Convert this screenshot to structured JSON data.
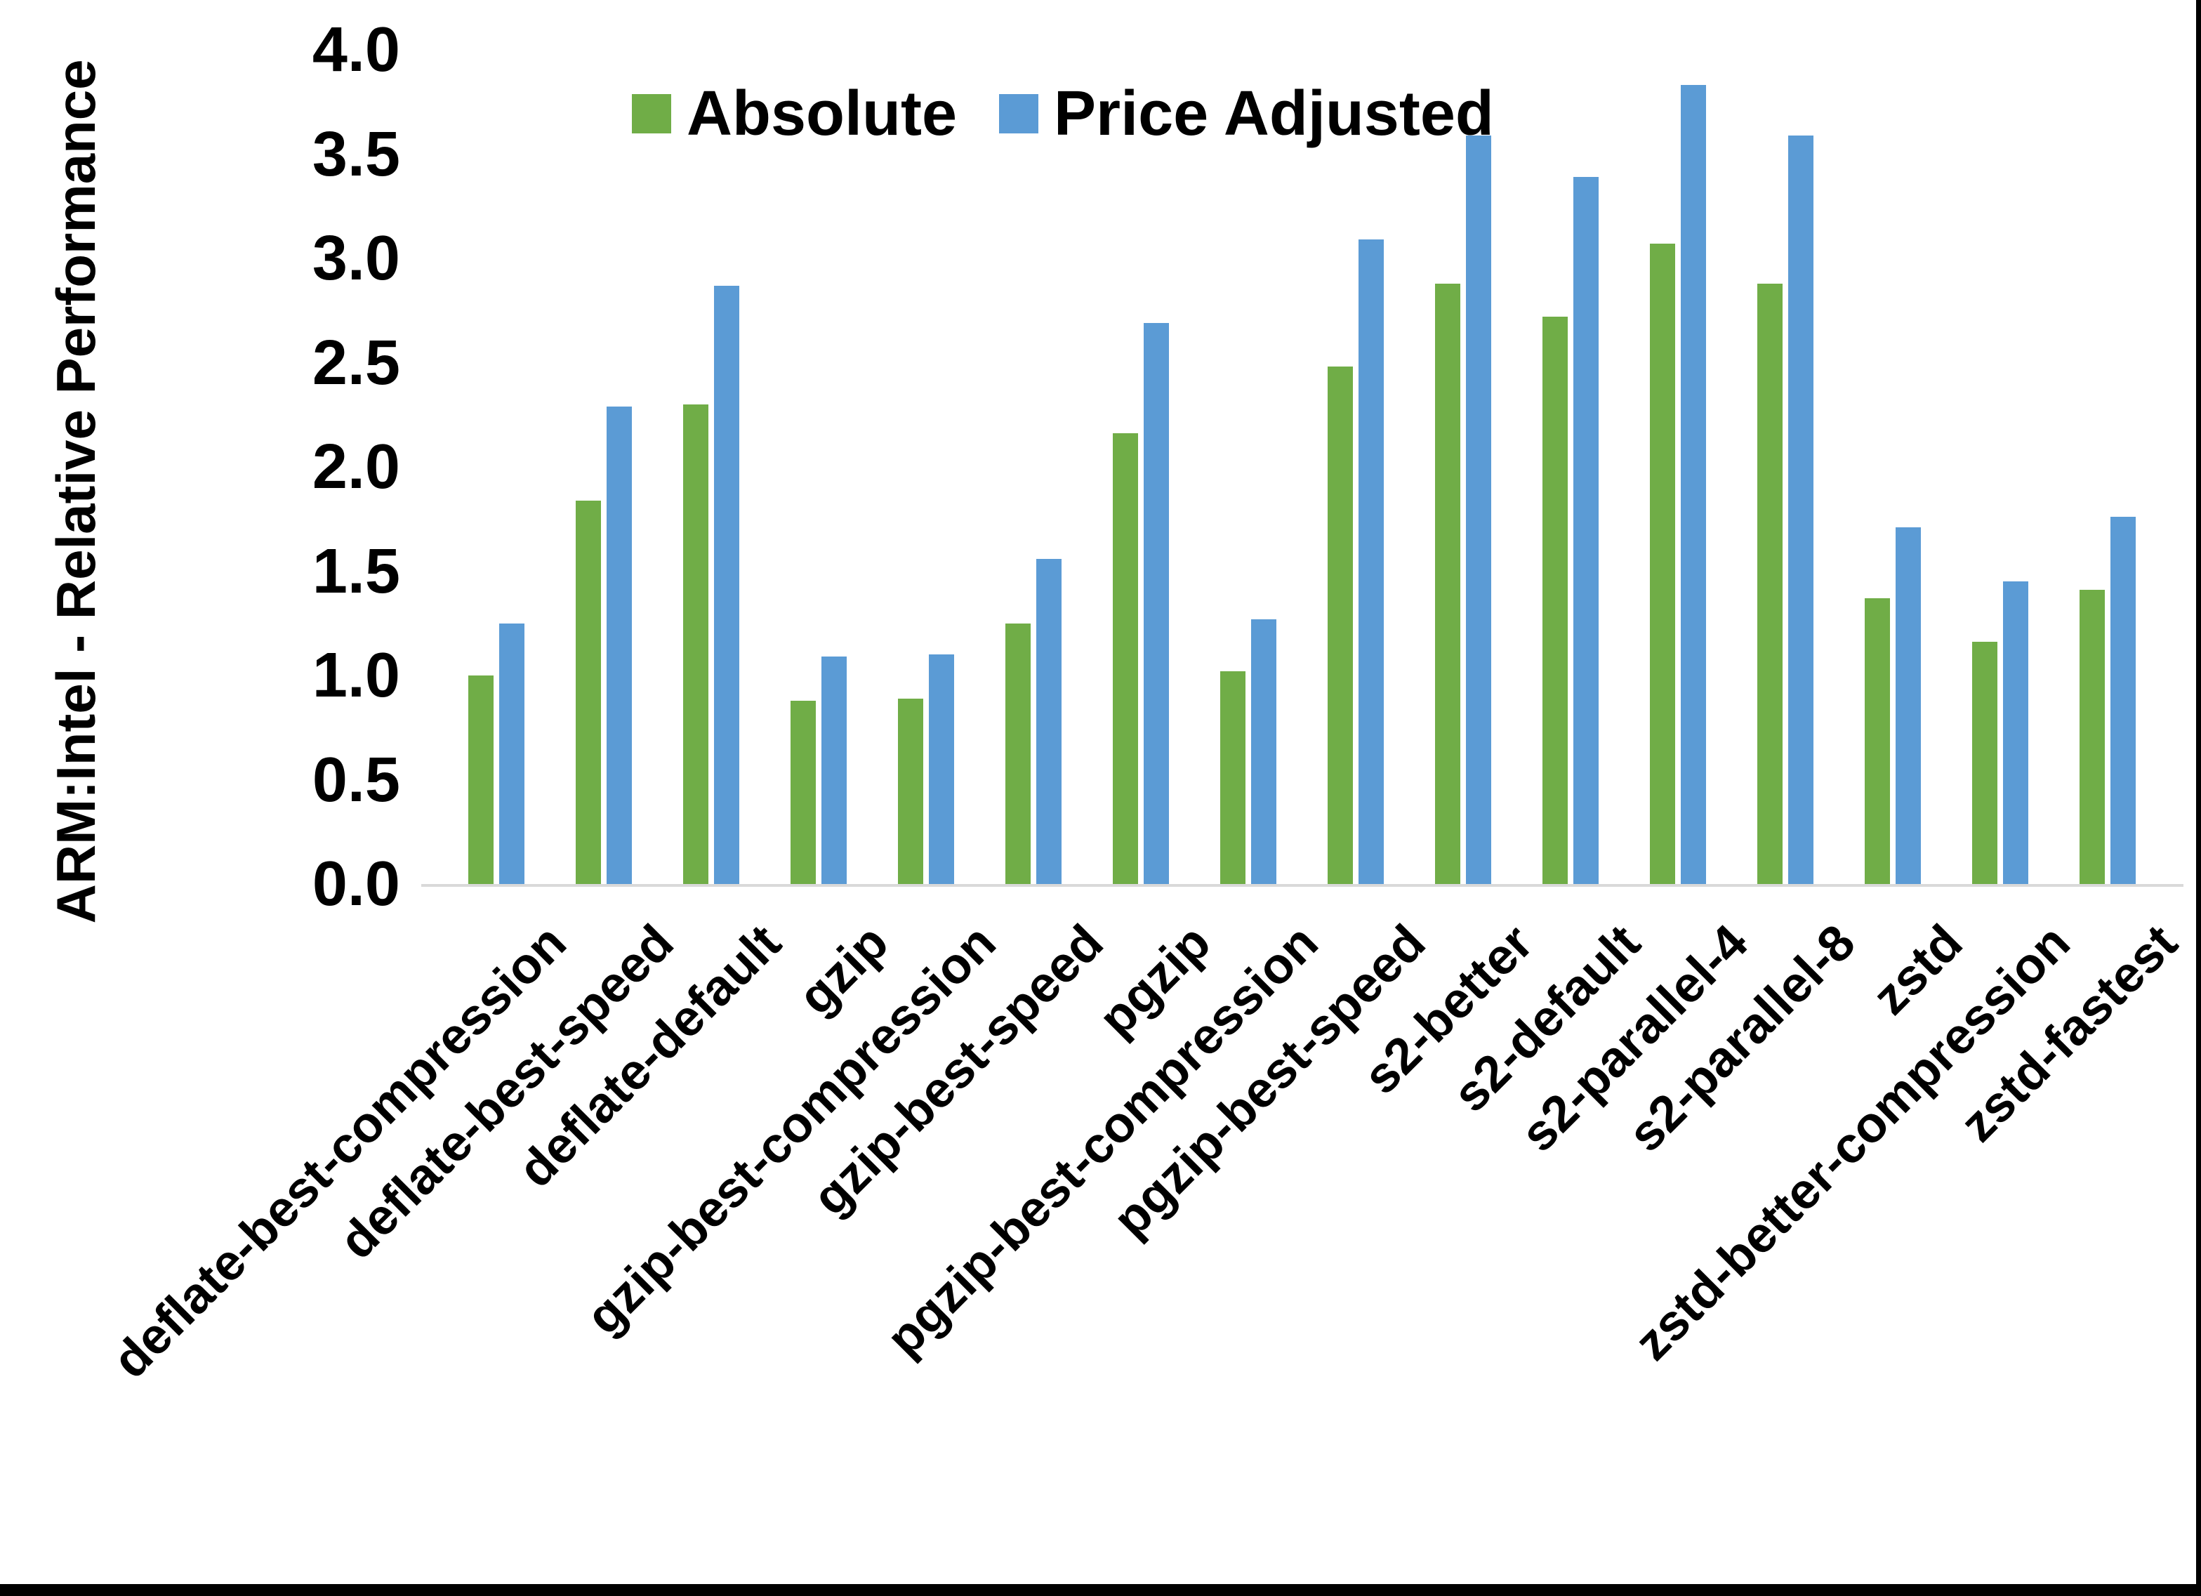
{
  "chart_data": {
    "type": "bar",
    "title": "",
    "xlabel": "",
    "ylabel": "ARM:Intel - Relative Performance",
    "ylim": [
      0.0,
      4.0
    ],
    "ytick_interval": 0.5,
    "ytick_labels": [
      "0.0",
      "0.5",
      "1.0",
      "1.5",
      "2.0",
      "2.5",
      "3.0",
      "3.5",
      "4.0"
    ],
    "grid": false,
    "legend": {
      "position": "top-center"
    },
    "categories": [
      "deflate-best-compression",
      "deflate-best-speed",
      "deflate-default",
      "gzip",
      "gzip-best-compression",
      "gzip-best-speed",
      "pgzip",
      "pgzip-best-compression",
      "pgzip-best-speed",
      "s2-better",
      "s2-default",
      "s2-parallel-4",
      "s2-parallel-8",
      "zstd",
      "zstd-better-compression",
      "zstd-fastest"
    ],
    "series": [
      {
        "name": "Absolute",
        "color": "#70AD47",
        "values": [
          1.0,
          1.84,
          2.3,
          0.88,
          0.89,
          1.25,
          2.16,
          1.02,
          2.48,
          2.88,
          2.72,
          3.07,
          2.88,
          1.37,
          1.16,
          1.41
        ]
      },
      {
        "name": "Price Adjusted",
        "color": "#5B9BD5",
        "values": [
          1.25,
          2.29,
          2.87,
          1.09,
          1.1,
          1.56,
          2.69,
          1.27,
          3.09,
          3.59,
          3.39,
          3.83,
          3.59,
          1.71,
          1.45,
          1.76
        ]
      }
    ],
    "axis_line_color": "#D9D9D9",
    "text_color": "#000000",
    "background_color": "#FFFFFF"
  }
}
